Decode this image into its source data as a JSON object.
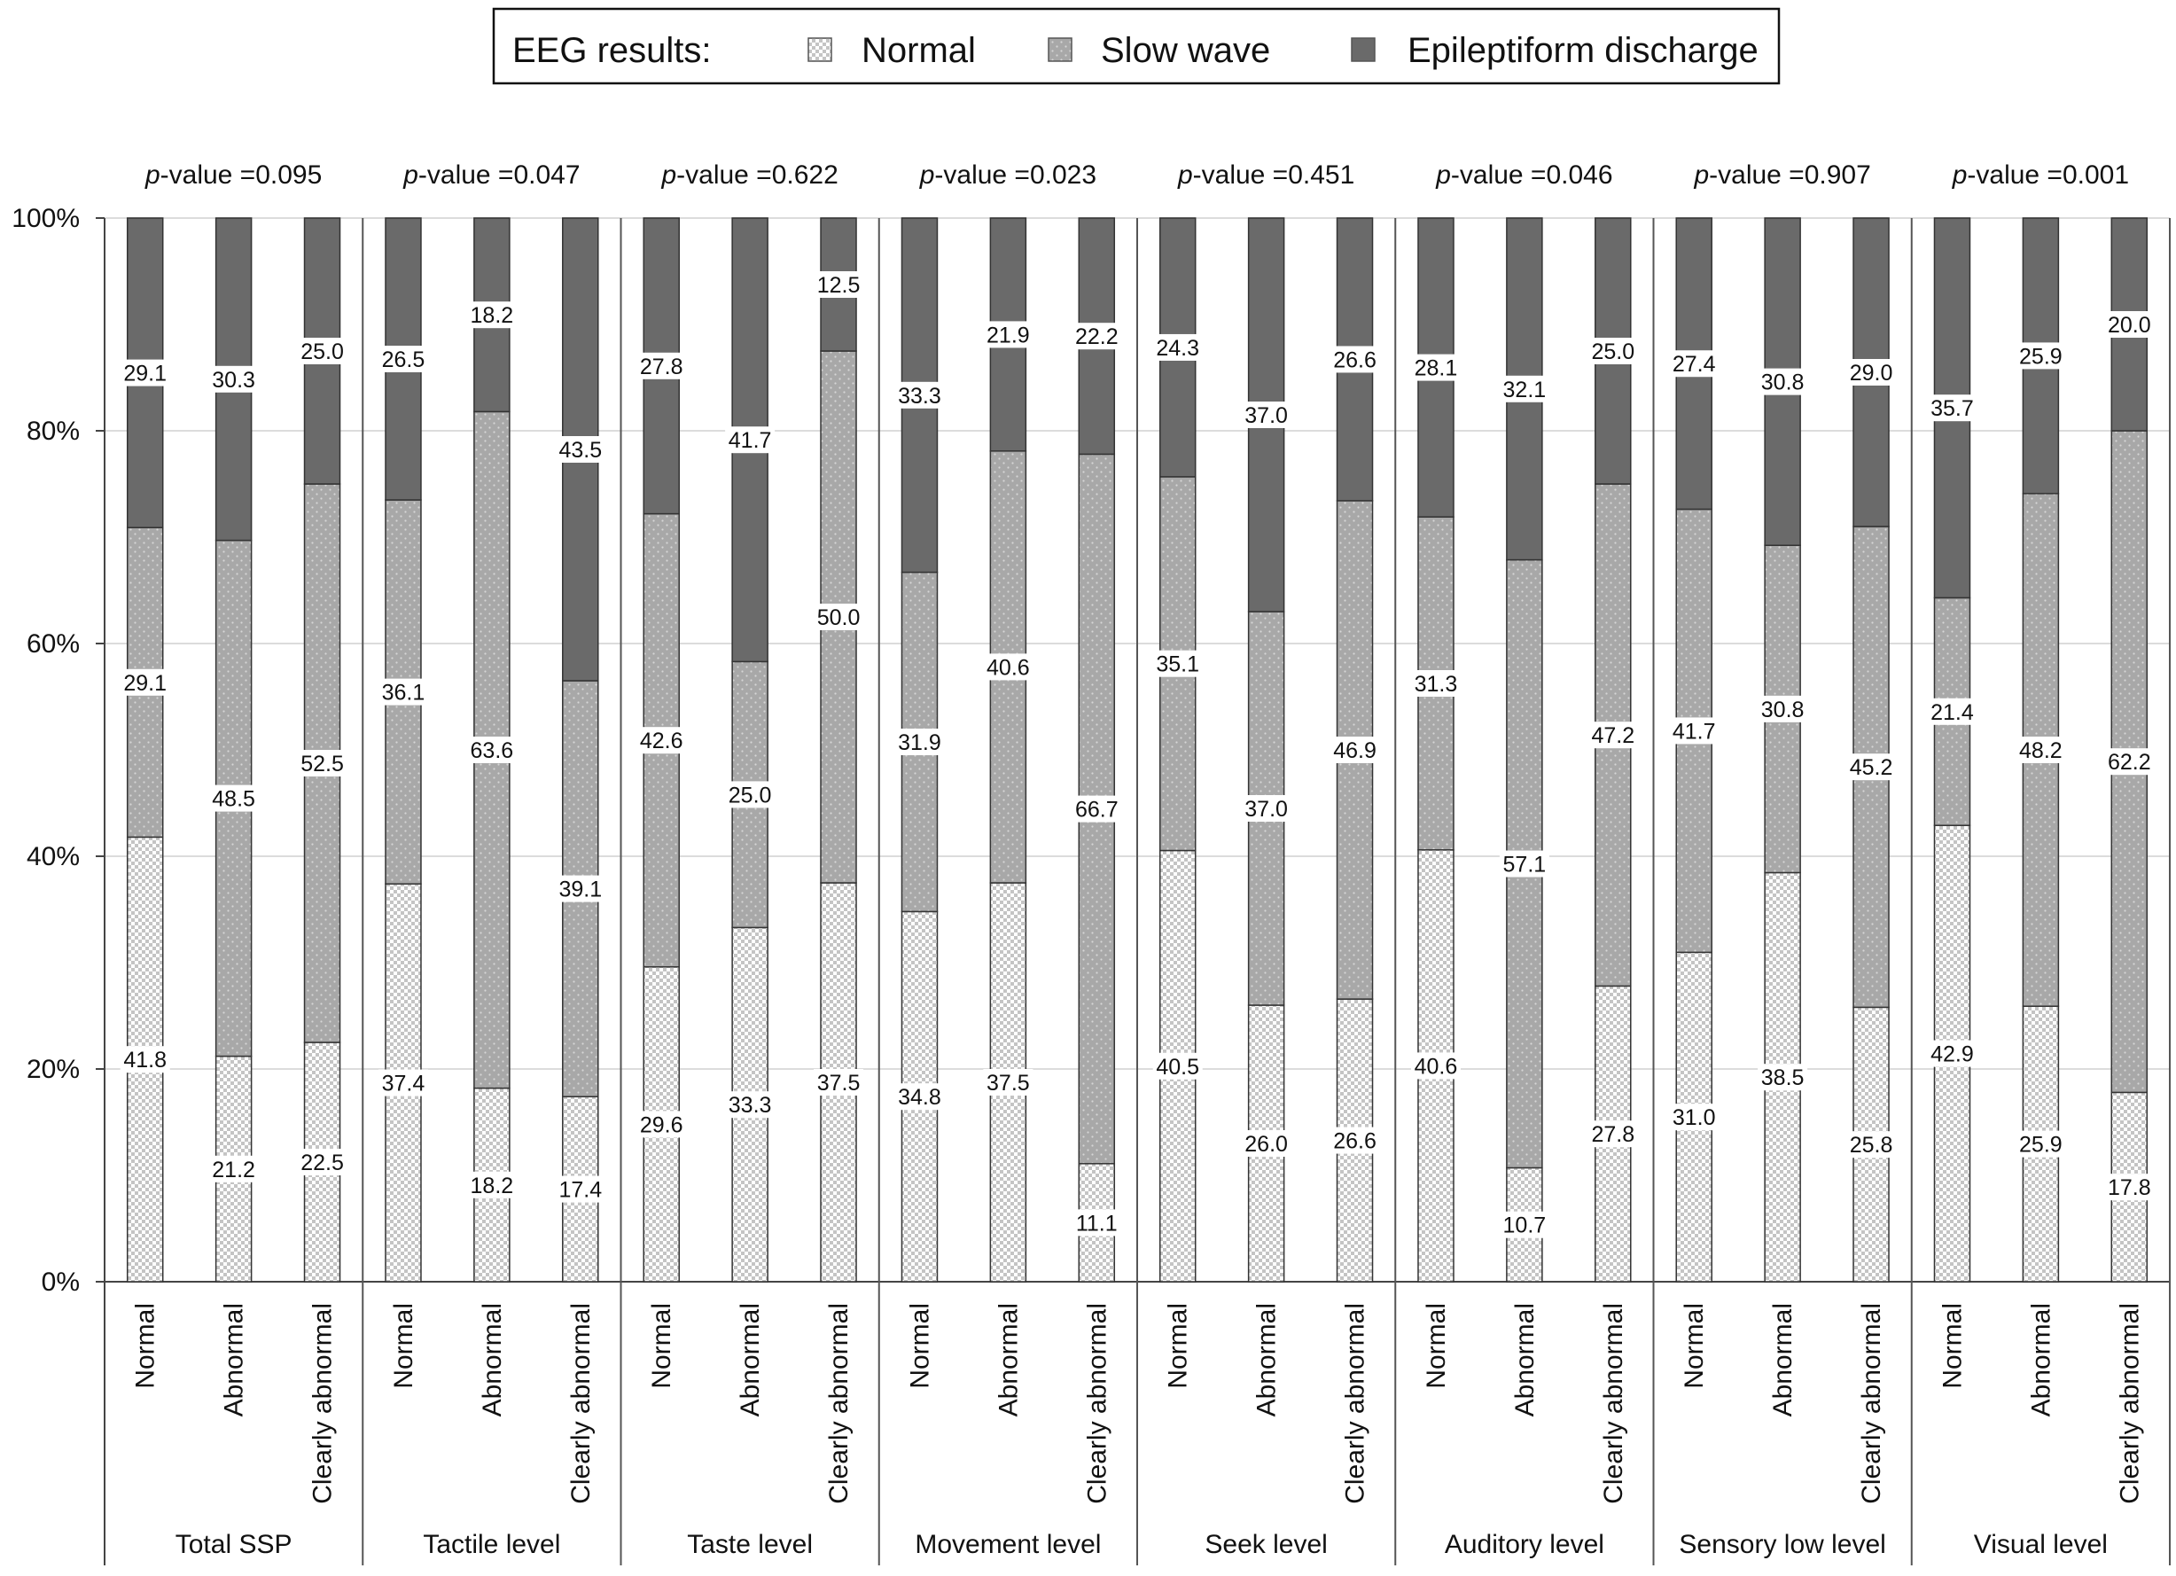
{
  "chart_data": {
    "type": "bar",
    "stacked": true,
    "percent": true,
    "legend": {
      "title": "EEG results:",
      "position": "top-center",
      "entries": [
        {
          "name": "Normal",
          "pattern": "checker"
        },
        {
          "name": "Slow wave",
          "pattern": "dots"
        },
        {
          "name": "Epileptiform discharge",
          "pattern": "solid"
        }
      ]
    },
    "y_ticks": [
      "0%",
      "20%",
      "40%",
      "60%",
      "80%",
      "100%"
    ],
    "ylim": [
      0,
      100
    ],
    "pvalue_prefix": "p",
    "pvalue_suffix": "-value =",
    "groups": [
      {
        "name": "Total SSP",
        "pvalue": "0.095",
        "bars": [
          {
            "category": "Normal",
            "values": [
              "41.8",
              "29.1",
              "29.1"
            ]
          },
          {
            "category": "Abnormal",
            "values": [
              "21.2",
              "48.5",
              "30.3"
            ]
          },
          {
            "category": "Clearly abnormal",
            "values": [
              "22.5",
              "52.5",
              "25.0"
            ]
          }
        ]
      },
      {
        "name": "Tactile level",
        "pvalue": "0.047",
        "bars": [
          {
            "category": "Normal",
            "values": [
              "37.4",
              "36.1",
              "26.5"
            ]
          },
          {
            "category": "Abnormal",
            "values": [
              "18.2",
              "63.6",
              "18.2"
            ]
          },
          {
            "category": "Clearly abnormal",
            "values": [
              "17.4",
              "39.1",
              "43.5"
            ]
          }
        ]
      },
      {
        "name": "Taste level",
        "pvalue": "0.622",
        "bars": [
          {
            "category": "Normal",
            "values": [
              "29.6",
              "42.6",
              "27.8"
            ]
          },
          {
            "category": "Abnormal",
            "values": [
              "33.3",
              "25.0",
              "41.7"
            ]
          },
          {
            "category": "Clearly abnormal",
            "values": [
              "37.5",
              "50.0",
              "12.5"
            ]
          }
        ]
      },
      {
        "name": "Movement level",
        "pvalue": "0.023",
        "bars": [
          {
            "category": "Normal",
            "values": [
              "34.8",
              "31.9",
              "33.3"
            ]
          },
          {
            "category": "Abnormal",
            "values": [
              "37.5",
              "40.6",
              "21.9"
            ]
          },
          {
            "category": "Clearly abnormal",
            "values": [
              "11.1",
              "66.7",
              "22.2"
            ]
          }
        ]
      },
      {
        "name": "Seek level",
        "pvalue": "0.451",
        "bars": [
          {
            "category": "Normal",
            "values": [
              "40.5",
              "35.1",
              "24.3"
            ]
          },
          {
            "category": "Abnormal",
            "values": [
              "26.0",
              "37.0",
              "37.0"
            ]
          },
          {
            "category": "Clearly abnormal",
            "values": [
              "26.6",
              "46.9",
              "26.6"
            ]
          }
        ]
      },
      {
        "name": "Auditory level",
        "pvalue": "0.046",
        "bars": [
          {
            "category": "Normal",
            "values": [
              "40.6",
              "31.3",
              "28.1"
            ]
          },
          {
            "category": "Abnormal",
            "values": [
              "10.7",
              "57.1",
              "32.1"
            ]
          },
          {
            "category": "Clearly abnormal",
            "values": [
              "27.8",
              "47.2",
              "25.0"
            ]
          }
        ]
      },
      {
        "name": "Sensory low level",
        "pvalue": "0.907",
        "bars": [
          {
            "category": "Normal",
            "values": [
              "31.0",
              "41.7",
              "27.4"
            ]
          },
          {
            "category": "Abnormal",
            "values": [
              "38.5",
              "30.8",
              "30.8"
            ]
          },
          {
            "category": "Clearly abnormal",
            "values": [
              "25.8",
              "45.2",
              "29.0"
            ]
          }
        ]
      },
      {
        "name": "Visual level",
        "pvalue": "0.001",
        "bars": [
          {
            "category": "Normal",
            "values": [
              "42.9",
              "21.4",
              "35.7"
            ]
          },
          {
            "category": "Abnormal",
            "values": [
              "25.9",
              "48.2",
              "25.9"
            ]
          },
          {
            "category": "Clearly abnormal",
            "values": [
              "17.8",
              "62.2",
              "20.0"
            ]
          }
        ]
      }
    ]
  }
}
